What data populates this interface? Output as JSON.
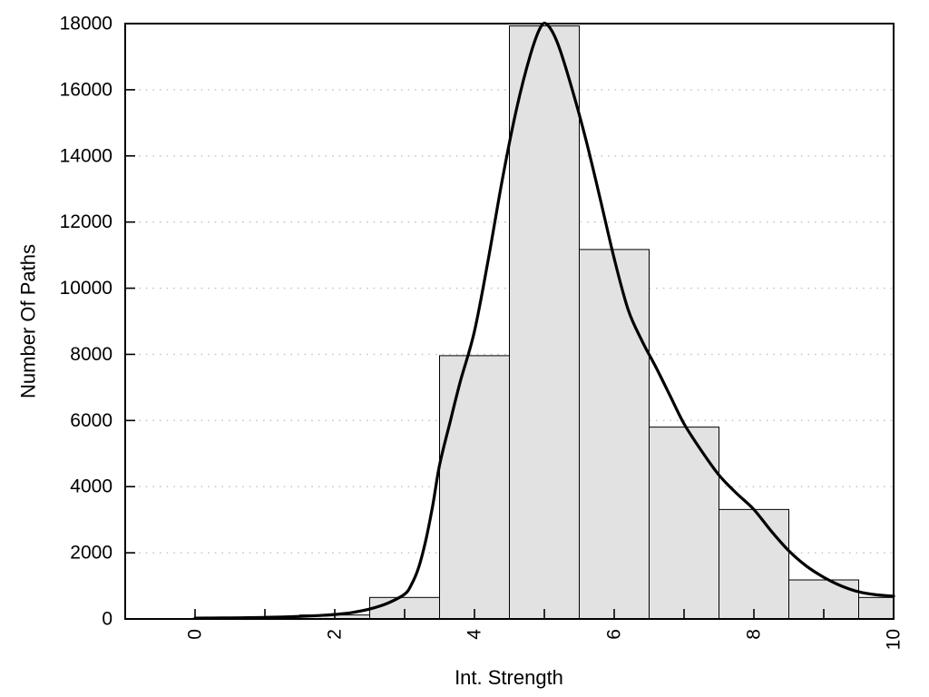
{
  "chart_data": {
    "type": "bar",
    "variant": "histogram_with_density_curve",
    "title": "",
    "xlabel": "Int. Strength",
    "ylabel": "Number Of Paths",
    "xlim": [
      -1,
      10
    ],
    "ylim": [
      0,
      18000
    ],
    "x_all_ticks": [
      0,
      1,
      2,
      3,
      4,
      5,
      6,
      7,
      8,
      9,
      10
    ],
    "x_labeled_ticks": [
      0,
      2,
      4,
      6,
      8,
      10
    ],
    "x_tick_label_rotation_deg": -90,
    "y_ticks": [
      0,
      2000,
      4000,
      6000,
      8000,
      10000,
      12000,
      14000,
      16000,
      18000
    ],
    "y_gridlines": [
      2000,
      4000,
      6000,
      8000,
      10000,
      12000,
      14000,
      16000
    ],
    "grid_style": "dotted",
    "legend": "none",
    "histogram": {
      "bin_width": 1,
      "bin_centers": [
        2,
        3,
        4,
        5,
        6,
        7,
        8,
        9,
        10
      ],
      "counts": [
        120,
        650,
        7960,
        17930,
        11170,
        5800,
        3310,
        1180,
        650
      ]
    },
    "curve_series": {
      "name": "density-fit-curve",
      "points": [
        [
          0,
          25
        ],
        [
          0.25,
          28
        ],
        [
          0.5,
          32
        ],
        [
          0.75,
          39
        ],
        [
          1,
          48
        ],
        [
          1.25,
          60
        ],
        [
          1.5,
          78
        ],
        [
          1.75,
          102
        ],
        [
          2,
          135
        ],
        [
          2.25,
          195
        ],
        [
          2.5,
          300
        ],
        [
          2.75,
          470
        ],
        [
          3,
          750
        ],
        [
          3.1,
          1050
        ],
        [
          3.2,
          1550
        ],
        [
          3.3,
          2350
        ],
        [
          3.4,
          3400
        ],
        [
          3.5,
          4650
        ],
        [
          3.65,
          5950
        ],
        [
          3.8,
          7200
        ],
        [
          4,
          8700
        ],
        [
          4.2,
          10900
        ],
        [
          4.4,
          13300
        ],
        [
          4.6,
          15400
        ],
        [
          4.8,
          17050
        ],
        [
          4.95,
          17900
        ],
        [
          5.05,
          17950
        ],
        [
          5.2,
          17350
        ],
        [
          5.4,
          16000
        ],
        [
          5.6,
          14450
        ],
        [
          5.8,
          12700
        ],
        [
          6,
          10900
        ],
        [
          6.2,
          9350
        ],
        [
          6.4,
          8400
        ],
        [
          6.6,
          7600
        ],
        [
          6.8,
          6750
        ],
        [
          7,
          5900
        ],
        [
          7.25,
          5080
        ],
        [
          7.5,
          4350
        ],
        [
          7.75,
          3800
        ],
        [
          8,
          3310
        ],
        [
          8.25,
          2650
        ],
        [
          8.5,
          2060
        ],
        [
          8.75,
          1600
        ],
        [
          9,
          1260
        ],
        [
          9.25,
          1000
        ],
        [
          9.5,
          820
        ],
        [
          9.75,
          730
        ],
        [
          10,
          690
        ]
      ]
    },
    "colors": {
      "background": "#ffffff",
      "bar_fill": "#e2e2e2",
      "bar_border": "#000000",
      "curve": "#000000",
      "grid": "#c2c2c2",
      "frame": "#000000",
      "text": "#000000"
    }
  }
}
